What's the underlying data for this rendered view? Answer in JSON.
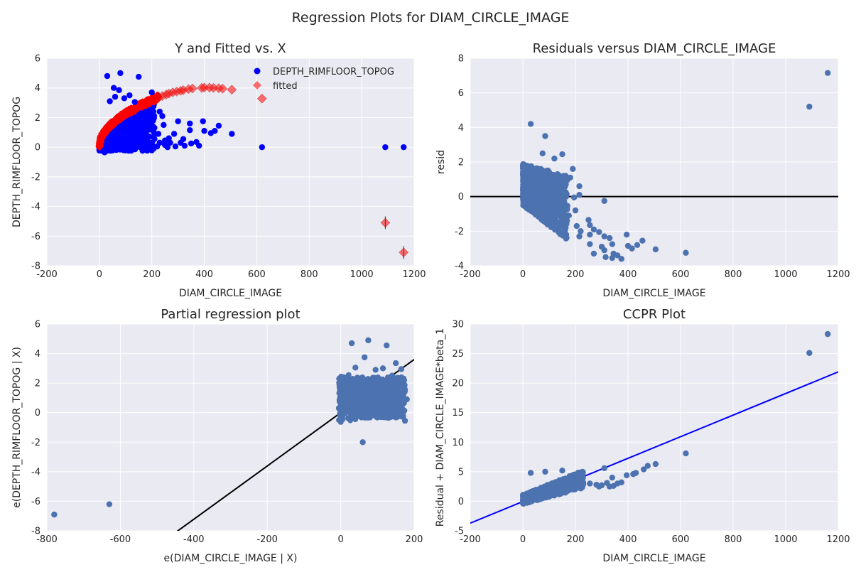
{
  "figure_title": "Regression Plots for DIAM_CIRCLE_IMAGE",
  "colors": {
    "plot_bg": "#EAEAF2",
    "grid": "#FFFFFF",
    "observed_blue": "#0000FF",
    "fitted_red": "#FF0000",
    "seaborn_blue": "#4C72B0",
    "black_line": "#000000",
    "ccpr_line": "#0000FF"
  },
  "chart_data": [
    {
      "id": "yfitted",
      "type": "scatter",
      "title": "Y and Fitted vs. X",
      "xlabel": "DIAM_CIRCLE_IMAGE",
      "ylabel": "DEPTH_RIMFLOOR_TOPOG",
      "xlim": [
        -200,
        1200
      ],
      "ylim": [
        -8,
        6
      ],
      "xticks": [
        -200,
        0,
        200,
        400,
        600,
        800,
        1000,
        1200
      ],
      "yticks": [
        -8,
        -6,
        -4,
        -2,
        0,
        2,
        4,
        6
      ],
      "grid": true,
      "legend": {
        "placement": "top-right",
        "entries": [
          "DEPTH_RIMFLOOR_TOPOG",
          "fitted"
        ]
      },
      "series": [
        {
          "name": "DEPTH_RIMFLOOR_TOPOG",
          "marker": "circle",
          "points": [
            [
              30,
              4.8
            ],
            [
              80,
              5.0
            ],
            [
              150,
              4.75
            ],
            [
              55,
              4.0
            ],
            [
              75,
              3.85
            ],
            [
              115,
              3.5
            ],
            [
              135,
              3.05
            ],
            [
              200,
              3.7
            ],
            [
              95,
              3.3
            ],
            [
              40,
              3.1
            ],
            [
              60,
              3.4
            ],
            [
              230,
              2.4
            ],
            [
              240,
              2.1
            ],
            [
              245,
              1.5
            ],
            [
              300,
              1.75
            ],
            [
              345,
              1.6
            ],
            [
              345,
              1.15
            ],
            [
              395,
              1.75
            ],
            [
              400,
              1.1
            ],
            [
              425,
              0.95
            ],
            [
              440,
              1.1
            ],
            [
              455,
              1.45
            ],
            [
              505,
              0.9
            ],
            [
              285,
              0.9
            ],
            [
              320,
              0.55
            ],
            [
              250,
              0.45
            ],
            [
              210,
              0.55
            ],
            [
              230,
              0.3
            ],
            [
              250,
              0.15
            ],
            [
              270,
              0.3
            ],
            [
              290,
              0.05
            ],
            [
              310,
              0.3
            ],
            [
              325,
              0.1
            ],
            [
              350,
              0.25
            ],
            [
              370,
              0.35
            ],
            [
              380,
              0.1
            ],
            [
              260,
              0.0
            ],
            [
              265,
              0.6
            ],
            [
              160,
              0.0
            ],
            [
              175,
              0.1
            ],
            [
              190,
              0.0
            ],
            [
              200,
              0.25
            ],
            [
              220,
              0.05
            ],
            [
              185,
              1.2
            ],
            [
              205,
              1.4
            ],
            [
              165,
              1.9
            ],
            [
              190,
              1.6
            ],
            [
              210,
              1.3
            ],
            [
              225,
              0.9
            ],
            [
              20,
              -0.35
            ],
            [
              620,
              0.0
            ],
            [
              1090,
              0.0
            ],
            [
              1160,
              0.0
            ]
          ]
        },
        {
          "name": "fitted",
          "marker": "diamond",
          "points": [
            [
              225,
              3.35
            ],
            [
              240,
              3.45
            ],
            [
              255,
              3.55
            ],
            [
              265,
              3.62
            ],
            [
              280,
              3.7
            ],
            [
              295,
              3.75
            ],
            [
              310,
              3.8
            ],
            [
              320,
              3.85
            ],
            [
              340,
              3.92
            ],
            [
              355,
              3.96
            ],
            [
              390,
              4.0
            ],
            [
              400,
              4.02
            ],
            [
              420,
              4.02
            ],
            [
              435,
              4.0
            ],
            [
              455,
              3.98
            ],
            [
              470,
              3.95
            ],
            [
              505,
              3.88
            ],
            [
              620,
              3.28
            ],
            [
              1090,
              -5.1
            ],
            [
              1160,
              -7.1
            ]
          ]
        }
      ]
    },
    {
      "id": "resid",
      "type": "scatter",
      "title": "Residuals versus DIAM_CIRCLE_IMAGE",
      "xlabel": "DIAM_CIRCLE_IMAGE",
      "ylabel": "resid",
      "xlim": [
        -200,
        1200
      ],
      "ylim": [
        -4,
        8
      ],
      "xticks": [
        -200,
        0,
        200,
        400,
        600,
        800,
        1000,
        1200
      ],
      "yticks": [
        -4,
        -2,
        0,
        2,
        4,
        6,
        8
      ],
      "grid": true,
      "hline": 0,
      "series": [
        {
          "name": "",
          "marker": "circle",
          "points": [
            [
              30,
              4.2
            ],
            [
              85,
              3.5
            ],
            [
              75,
              2.5
            ],
            [
              150,
              2.45
            ],
            [
              120,
              2.2
            ],
            [
              190,
              1.6
            ],
            [
              155,
              1.2
            ],
            [
              180,
              1.1
            ],
            [
              215,
              0.6
            ],
            [
              215,
              0.1
            ],
            [
              195,
              -0.05
            ],
            [
              310,
              -0.25
            ],
            [
              200,
              -0.8
            ],
            [
              175,
              -1.1
            ],
            [
              165,
              -1.6
            ],
            [
              205,
              -1.7
            ],
            [
              220,
              -2.0
            ],
            [
              215,
              -2.3
            ],
            [
              250,
              -1.35
            ],
            [
              255,
              -1.65
            ],
            [
              270,
              -1.9
            ],
            [
              255,
              -2.2
            ],
            [
              290,
              -2.05
            ],
            [
              310,
              -2.3
            ],
            [
              330,
              -2.4
            ],
            [
              340,
              -2.75
            ],
            [
              255,
              -2.75
            ],
            [
              300,
              -2.9
            ],
            [
              310,
              -3.1
            ],
            [
              270,
              -3.3
            ],
            [
              315,
              -3.5
            ],
            [
              340,
              -3.55
            ],
            [
              345,
              -3.3
            ],
            [
              360,
              -3.4
            ],
            [
              375,
              -3.6
            ],
            [
              395,
              -2.2
            ],
            [
              400,
              -2.85
            ],
            [
              415,
              -3.0
            ],
            [
              435,
              -2.8
            ],
            [
              455,
              -2.55
            ],
            [
              505,
              -3.05
            ],
            [
              620,
              -3.25
            ],
            [
              1090,
              5.2
            ],
            [
              1160,
              7.15
            ]
          ]
        }
      ]
    },
    {
      "id": "partreg",
      "type": "scatter",
      "title": "Partial regression plot",
      "xlabel": "e(DIAM_CIRCLE_IMAGE | X)",
      "ylabel": "e(DEPTH_RIMFLOOR_TOPOG | X)",
      "xlim": [
        -800,
        200
      ],
      "ylim": [
        -8,
        6
      ],
      "xticks": [
        -800,
        -600,
        -400,
        -200,
        0,
        200
      ],
      "yticks": [
        -8,
        -6,
        -4,
        -2,
        0,
        2,
        4,
        6
      ],
      "grid": true,
      "fit_line": {
        "x": [
          -460,
          200
        ],
        "y": [
          -8.3,
          3.6
        ]
      },
      "series": [
        {
          "name": "",
          "marker": "circle",
          "points": [
            [
              -780,
              -6.9
            ],
            [
              -630,
              -6.2
            ],
            [
              30,
              4.7
            ],
            [
              75,
              4.9
            ],
            [
              125,
              4.55
            ],
            [
              65,
              3.75
            ],
            [
              150,
              3.35
            ],
            [
              115,
              3.0
            ],
            [
              165,
              2.95
            ],
            [
              140,
              2.5
            ],
            [
              40,
              3.05
            ],
            [
              95,
              2.9
            ],
            [
              170,
              2.1
            ],
            [
              175,
              1.5
            ],
            [
              180,
              0.9
            ],
            [
              170,
              -0.25
            ],
            [
              175,
              -0.55
            ],
            [
              150,
              -0.1
            ],
            [
              130,
              -0.35
            ],
            [
              155,
              0.4
            ],
            [
              60,
              -2.0
            ],
            [
              0,
              -0.1
            ],
            [
              -5,
              0.3
            ],
            [
              5,
              0.6
            ]
          ]
        }
      ]
    },
    {
      "id": "ccpr",
      "type": "scatter",
      "title": "CCPR Plot",
      "xlabel": "DIAM_CIRCLE_IMAGE",
      "ylabel": "Residual + DIAM_CIRCLE_IMAGE*beta_1",
      "xlim": [
        -200,
        1200
      ],
      "ylim": [
        -5,
        30
      ],
      "xticks": [
        -200,
        0,
        200,
        400,
        600,
        800,
        1000,
        1200
      ],
      "yticks": [
        -5,
        0,
        5,
        10,
        15,
        20,
        25,
        30
      ],
      "grid": true,
      "fit_line": {
        "x": [
          -200,
          1200
        ],
        "y": [
          -3.7,
          21.9
        ]
      },
      "series": [
        {
          "name": "",
          "marker": "circle",
          "points": [
            [
              30,
              4.8
            ],
            [
              85,
              5.0
            ],
            [
              150,
              5.2
            ],
            [
              215,
              4.7
            ],
            [
              310,
              5.6
            ],
            [
              340,
              4.0
            ],
            [
              200,
              3.2
            ],
            [
              230,
              2.9
            ],
            [
              255,
              3.0
            ],
            [
              280,
              2.8
            ],
            [
              290,
              2.5
            ],
            [
              300,
              2.7
            ],
            [
              320,
              3.1
            ],
            [
              330,
              2.5
            ],
            [
              345,
              2.6
            ],
            [
              360,
              3.0
            ],
            [
              375,
              3.2
            ],
            [
              395,
              4.4
            ],
            [
              420,
              4.6
            ],
            [
              430,
              4.8
            ],
            [
              460,
              5.4
            ],
            [
              475,
              6.0
            ],
            [
              505,
              6.3
            ],
            [
              620,
              8.1
            ],
            [
              1090,
              25.1
            ],
            [
              1160,
              28.3
            ]
          ]
        }
      ]
    }
  ]
}
